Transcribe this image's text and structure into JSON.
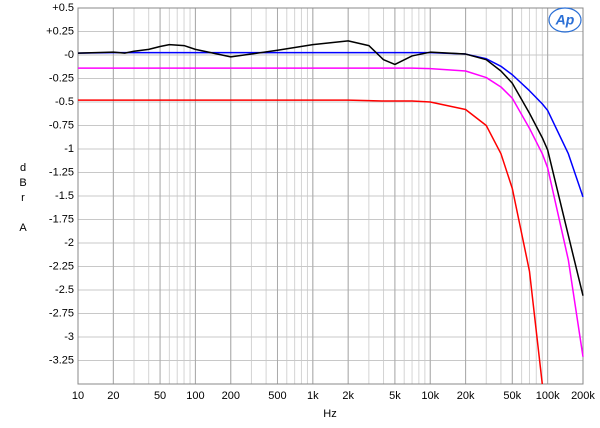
{
  "chart_data": {
    "type": "line",
    "xscale": "log",
    "grid": true,
    "x_label": "Hz",
    "y_label": "dBr A",
    "logo": "Ap",
    "x": [
      10,
      20,
      25,
      30,
      40,
      50,
      60,
      80,
      100,
      200,
      500,
      1000,
      2000,
      3000,
      4000,
      5000,
      7000,
      10000,
      20000,
      30000,
      40000,
      50000,
      70000,
      90000,
      100000,
      150000,
      200000
    ],
    "xlim": [
      10,
      200000
    ],
    "xticks": [
      10,
      20,
      50,
      100,
      200,
      500,
      {
        "value": 1000,
        "label": "1k"
      },
      {
        "value": 2000,
        "label": "2k"
      },
      {
        "value": 5000,
        "label": "5k"
      },
      {
        "value": 10000,
        "label": "10k"
      },
      {
        "value": 20000,
        "label": "20k"
      },
      {
        "value": 50000,
        "label": "50k"
      },
      {
        "value": 100000,
        "label": "100k"
      },
      {
        "value": 200000,
        "label": "200k"
      }
    ],
    "ylim": [
      -3.5,
      0.5
    ],
    "yticks": [
      {
        "value": 0.5,
        "label": "+0.5"
      },
      {
        "value": 0.25,
        "label": "+0.25"
      },
      {
        "value": 0,
        "label": "-0"
      },
      -0.25,
      -0.5,
      -0.75,
      -1,
      -1.25,
      -1.5,
      -1.75,
      -2,
      -2.25,
      -2.5,
      -2.75,
      -3,
      -3.25
    ],
    "series": [
      {
        "color": "#0000ff",
        "values": [
          0.02,
          0.025,
          0.025,
          0.025,
          0.025,
          0.025,
          0.025,
          0.025,
          0.025,
          0.025,
          0.025,
          0.025,
          0.025,
          0.025,
          0.025,
          0.025,
          0.025,
          0.025,
          0.01,
          -0.04,
          -0.12,
          -0.21,
          -0.38,
          -0.52,
          -0.59,
          -1.05,
          -1.51
        ]
      },
      {
        "color": "#ff00ff",
        "values": [
          -0.14,
          -0.14,
          -0.14,
          -0.14,
          -0.14,
          -0.14,
          -0.14,
          -0.14,
          -0.14,
          -0.14,
          -0.14,
          -0.14,
          -0.14,
          -0.14,
          -0.14,
          -0.14,
          -0.14,
          -0.145,
          -0.17,
          -0.24,
          -0.34,
          -0.46,
          -0.78,
          -1.05,
          -1.2,
          -2.18,
          -3.21
        ]
      },
      {
        "color": "#000000",
        "values": [
          0.02,
          0.03,
          0.02,
          0.04,
          0.06,
          0.09,
          0.11,
          0.1,
          0.06,
          -0.02,
          0.05,
          0.11,
          0.15,
          0.1,
          -0.05,
          -0.1,
          -0.01,
          0.03,
          0.01,
          -0.05,
          -0.17,
          -0.3,
          -0.62,
          -0.88,
          -1.01,
          -1.92,
          -2.56
        ]
      },
      {
        "color": "#ff0000",
        "values": [
          -0.48,
          -0.48,
          -0.48,
          -0.48,
          -0.48,
          -0.48,
          -0.48,
          -0.48,
          -0.48,
          -0.48,
          -0.48,
          -0.48,
          -0.48,
          -0.485,
          -0.49,
          -0.49,
          -0.49,
          -0.5,
          -0.58,
          -0.75,
          -1.05,
          -1.42,
          -2.3,
          -3.5,
          null,
          null,
          null
        ]
      }
    ]
  }
}
